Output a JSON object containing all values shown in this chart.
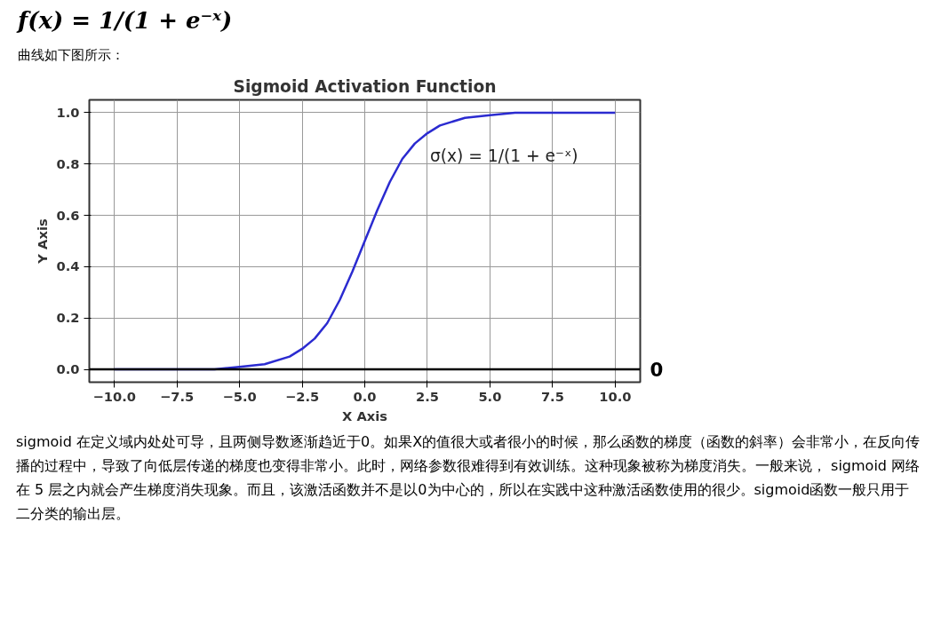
{
  "chart_data": {
    "type": "line",
    "title": "Sigmoid Activation Function",
    "xlabel": "X Axis",
    "ylabel": "Y Axis",
    "x": [
      -10,
      -8,
      -6,
      -5,
      -4,
      -3,
      -2.5,
      -2,
      -1.5,
      -1,
      -0.5,
      0,
      0.5,
      1,
      1.5,
      2,
      2.5,
      3,
      4,
      5,
      6,
      8,
      10
    ],
    "series": [
      {
        "color": "#2b2bd0",
        "values": [
          0.0,
          0.0,
          0.0,
          0.01,
          0.02,
          0.05,
          0.08,
          0.12,
          0.18,
          0.27,
          0.38,
          0.5,
          0.62,
          0.73,
          0.82,
          0.88,
          0.92,
          0.95,
          0.98,
          0.99,
          1.0,
          1.0,
          1.0
        ]
      }
    ],
    "xlim": [
      -11,
      11
    ],
    "ylim": [
      -0.05,
      1.05
    ],
    "xticks": [
      {
        "value": -10,
        "label": "−10.0"
      },
      {
        "value": -7.5,
        "label": "−7.5"
      },
      {
        "value": -5,
        "label": "−5.0"
      },
      {
        "value": -2.5,
        "label": "−2.5"
      },
      {
        "value": 0,
        "label": "0.0"
      },
      {
        "value": 2.5,
        "label": "2.5"
      },
      {
        "value": 5,
        "label": "5.0"
      },
      {
        "value": 7.5,
        "label": "7.5"
      },
      {
        "value": 10,
        "label": "10.0"
      }
    ],
    "yticks": [
      {
        "value": 0,
        "label": "0.0"
      },
      {
        "value": 0.2,
        "label": "0.2"
      },
      {
        "value": 0.4,
        "label": "0.4"
      },
      {
        "value": 0.6,
        "label": "0.6"
      },
      {
        "value": 0.8,
        "label": "0.8"
      },
      {
        "value": 1,
        "label": "1.0"
      }
    ],
    "grid": true,
    "marker": "none",
    "line_style": "solid",
    "ref_lines": [
      {
        "axis": "y",
        "value": 0,
        "label": "0",
        "color": "#000000"
      }
    ],
    "annotations": [
      "f(x) = 1/(1 + e⁻ˣ)",
      "曲线如下图所示：",
      "σ(x) = 1/(1 + e⁻ˣ)",
      "sigmoid 在定义域内处处可导，且两侧导数逐渐趋近于0。如果X的值很大或者很小的时候，那么函数的梯度（函数的斜率）会非常小，在反向传播的过程中，导致了向低层传递的梯度也变得非常小。此时，网络参数很难得到有效训练。这种现象被称为梯度消失。一般来说， sigmoid 网络在 5 层之内就会产生梯度消失现象。而且，该激活函数并不是以0为中心的，所以在实践中这种激活函数使用的很少。sigmoid函数一般只用于二分类的输出层。"
    ]
  }
}
